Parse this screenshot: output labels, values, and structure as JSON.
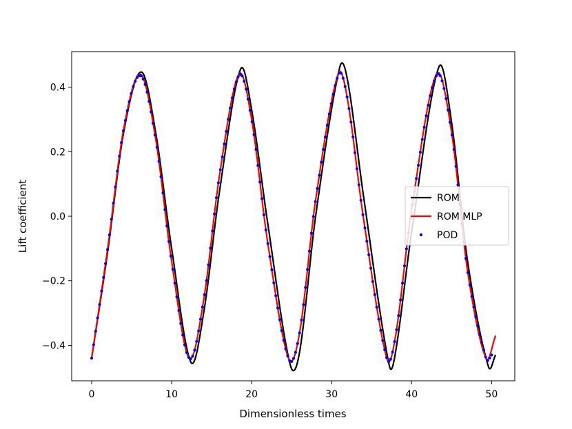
{
  "chart_data": {
    "type": "line",
    "title": "",
    "xlabel": "Dimensionless times",
    "ylabel": "Lift coefficient",
    "xlim": [
      -2.5,
      52.9
    ],
    "ylim": [
      -0.51,
      0.51
    ],
    "xticks": [
      0,
      10,
      20,
      30,
      40,
      50
    ],
    "xtick_labels": [
      "0",
      "10",
      "20",
      "30",
      "40",
      "50"
    ],
    "yticks": [
      -0.4,
      -0.2,
      0.0,
      0.2,
      0.4
    ],
    "ytick_labels": [
      "−0.4",
      "−0.2",
      "0.0",
      "0.2",
      "0.4"
    ],
    "grid": false,
    "legend_position": "center-right",
    "x_range": [
      0,
      50.5
    ],
    "series": [
      {
        "name": "ROM",
        "style": "line",
        "color": "#000000",
        "x": [
          0,
          2,
          4,
          6.2,
          8,
          10,
          12.4,
          14,
          16,
          18.6,
          20,
          22,
          24.8,
          26,
          28,
          31.0,
          32,
          34,
          37.2,
          38,
          40,
          43.4,
          45,
          47,
          49.6,
          50.5
        ],
        "y": [
          -0.44,
          -0.11,
          0.26,
          0.447,
          0.26,
          -0.1,
          -0.452,
          -0.3,
          0.08,
          0.455,
          0.33,
          -0.02,
          -0.458,
          -0.42,
          0.0,
          0.46,
          0.42,
          0.06,
          -0.462,
          -0.42,
          -0.05,
          0.462,
          0.29,
          -0.14,
          -0.466,
          -0.43
        ]
      },
      {
        "name": "ROM MLP",
        "style": "line",
        "color": "#ff0000",
        "x": [
          0,
          2,
          4,
          6.1,
          8,
          10,
          12.2,
          14,
          16,
          18.4,
          20,
          22,
          24.6,
          26,
          28,
          30.8,
          32,
          34,
          36.9,
          38,
          40,
          43.1,
          45,
          47,
          49.3,
          50.5
        ],
        "y": [
          -0.44,
          -0.1,
          0.27,
          0.44,
          0.24,
          -0.14,
          -0.44,
          -0.26,
          0.13,
          0.44,
          0.3,
          -0.08,
          -0.44,
          -0.36,
          0.05,
          0.44,
          0.36,
          -0.01,
          -0.44,
          -0.37,
          0.02,
          0.44,
          0.26,
          -0.17,
          -0.44,
          -0.37
        ]
      },
      {
        "name": "POD",
        "style": "dots",
        "color": "#0000ff",
        "x": [
          0,
          2,
          4,
          6.1,
          8,
          10,
          12.2,
          14,
          16,
          18.4,
          20,
          22,
          24.6,
          26,
          28,
          30.8,
          32,
          34,
          36.9,
          38,
          40,
          43.1,
          45,
          47,
          49.3,
          50.0
        ],
        "y": [
          -0.44,
          -0.1,
          0.27,
          0.436,
          0.24,
          -0.14,
          -0.44,
          -0.26,
          0.13,
          0.436,
          0.3,
          -0.08,
          -0.44,
          -0.36,
          0.05,
          0.436,
          0.36,
          -0.01,
          -0.44,
          -0.37,
          0.02,
          0.436,
          0.26,
          -0.17,
          -0.44,
          -0.43
        ]
      }
    ]
  }
}
